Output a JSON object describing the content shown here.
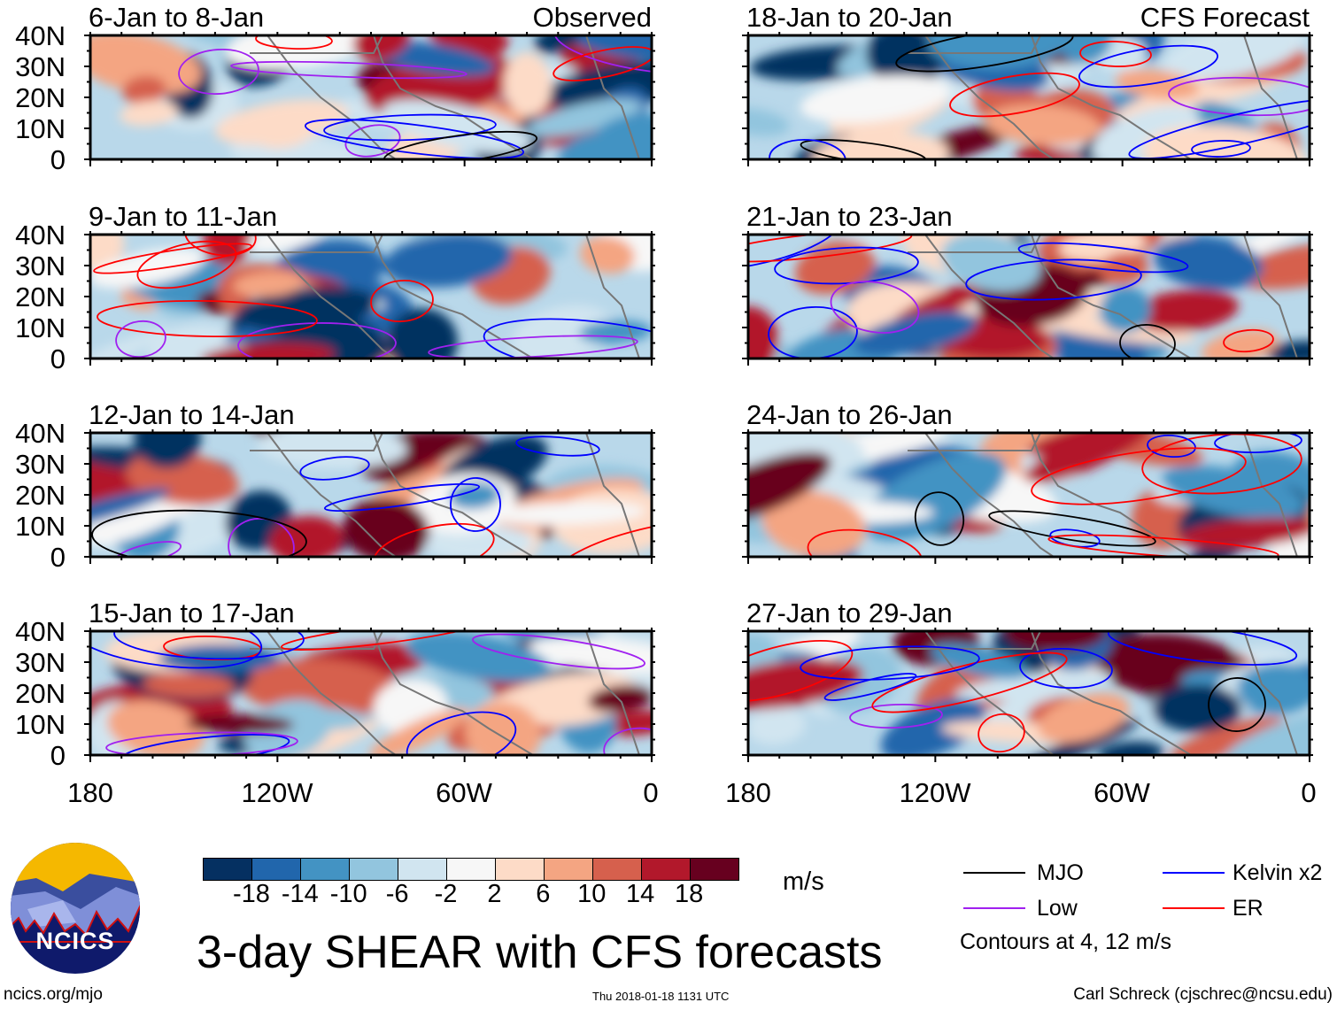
{
  "chart_data": {
    "type": "heatmap",
    "title": "3-day SHEAR with CFS forecasts",
    "units": "m/s",
    "colorbar": {
      "levels": [
        -18,
        -14,
        -10,
        -6,
        -2,
        2,
        6,
        10,
        14,
        18
      ],
      "level_labels": [
        "-18",
        "-14",
        "-10",
        "-6",
        "-2",
        "2",
        "6",
        "10",
        "14",
        "18"
      ],
      "colors": [
        "#053061",
        "#2166ac",
        "#4393c3",
        "#92c5de",
        "#d1e5f0",
        "#f7f7f7",
        "#fddbc7",
        "#f4a582",
        "#d6604d",
        "#b2182b",
        "#67001f"
      ]
    },
    "lat_ticks": [
      "40N",
      "30N",
      "20N",
      "10N",
      "0"
    ],
    "lon_ticks": [
      "180",
      "120W",
      "60W",
      "0"
    ],
    "lat_range": [
      0,
      40
    ],
    "lon_range": [
      -180,
      0
    ],
    "panels": [
      {
        "title": "6-Jan to 8-Jan",
        "label": "Observed",
        "column": "left"
      },
      {
        "title": "9-Jan to 11-Jan",
        "label": "",
        "column": "left"
      },
      {
        "title": "12-Jan to 14-Jan",
        "label": "",
        "column": "left"
      },
      {
        "title": "15-Jan to 17-Jan",
        "label": "",
        "column": "left"
      },
      {
        "title": "18-Jan to 20-Jan",
        "label": "CFS Forecast",
        "column": "right"
      },
      {
        "title": "21-Jan to 23-Jan",
        "label": "",
        "column": "right"
      },
      {
        "title": "24-Jan to 26-Jan",
        "label": "",
        "column": "right"
      },
      {
        "title": "27-Jan to 29-Jan",
        "label": "",
        "column": "right"
      }
    ],
    "legend": [
      {
        "label": "MJO",
        "color": "#000000"
      },
      {
        "label": "Kelvin x2",
        "color": "#0000ff"
      },
      {
        "label": "Low",
        "color": "#a020f0"
      },
      {
        "label": "ER",
        "color": "#ff0000"
      }
    ],
    "contour_note": "Contours at 4, 12 m/s"
  },
  "logo": {
    "text": "NCICS"
  },
  "footer": {
    "url": "ncics.org/mjo",
    "timestamp": "Thu 2018-01-18 1131 UTC",
    "credit": "Carl Schreck (cjschrec@ncsu.edu)"
  }
}
